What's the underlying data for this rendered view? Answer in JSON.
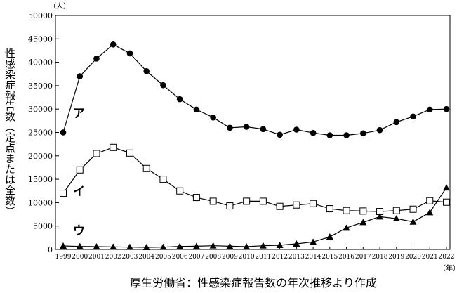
{
  "chart_data": {
    "type": "line",
    "ylabel": "性感染症報告数（定点または全数）",
    "y_unit": "（人）",
    "x_unit": "（年）",
    "caption": "厚生労働省：性感染症報告数の年次推移より作成",
    "ylim": [
      0,
      50000
    ],
    "y_ticks": [
      "0",
      "5000",
      "10000",
      "15000",
      "20000",
      "25000",
      "30000",
      "35000",
      "40000",
      "45000",
      "50000"
    ],
    "x": [
      "1999",
      "2000",
      "2001",
      "2002",
      "2003",
      "2004",
      "2005",
      "2006",
      "2007",
      "2008",
      "2009",
      "2010",
      "2011",
      "2012",
      "2013",
      "2014",
      "2015",
      "2016",
      "2017",
      "2018",
      "2019",
      "2020",
      "2021",
      "2022"
    ],
    "grid": false,
    "series": [
      {
        "name": "ア",
        "marker": "filled-circle",
        "values": [
          25000,
          37000,
          40800,
          43800,
          41900,
          38100,
          35100,
          32100,
          29900,
          28200,
          26000,
          26200,
          25700,
          24500,
          25600,
          24900,
          24400,
          24400,
          24800,
          25500,
          27200,
          28400,
          29900,
          30000
        ]
      },
      {
        "name": "イ",
        "marker": "open-square",
        "values": [
          12000,
          17000,
          20500,
          21800,
          20600,
          17300,
          15000,
          12500,
          11100,
          10300,
          9300,
          10300,
          10300,
          9200,
          9500,
          9800,
          8700,
          8300,
          8200,
          8100,
          8300,
          8600,
          10400,
          10100
        ]
      },
      {
        "name": "ウ",
        "marker": "filled-triangle",
        "values": [
          750,
          650,
          600,
          550,
          500,
          450,
          500,
          650,
          700,
          800,
          700,
          600,
          800,
          900,
          1200,
          1600,
          2700,
          4600,
          5800,
          7000,
          6600,
          5900,
          7900,
          13200
        ]
      }
    ]
  }
}
